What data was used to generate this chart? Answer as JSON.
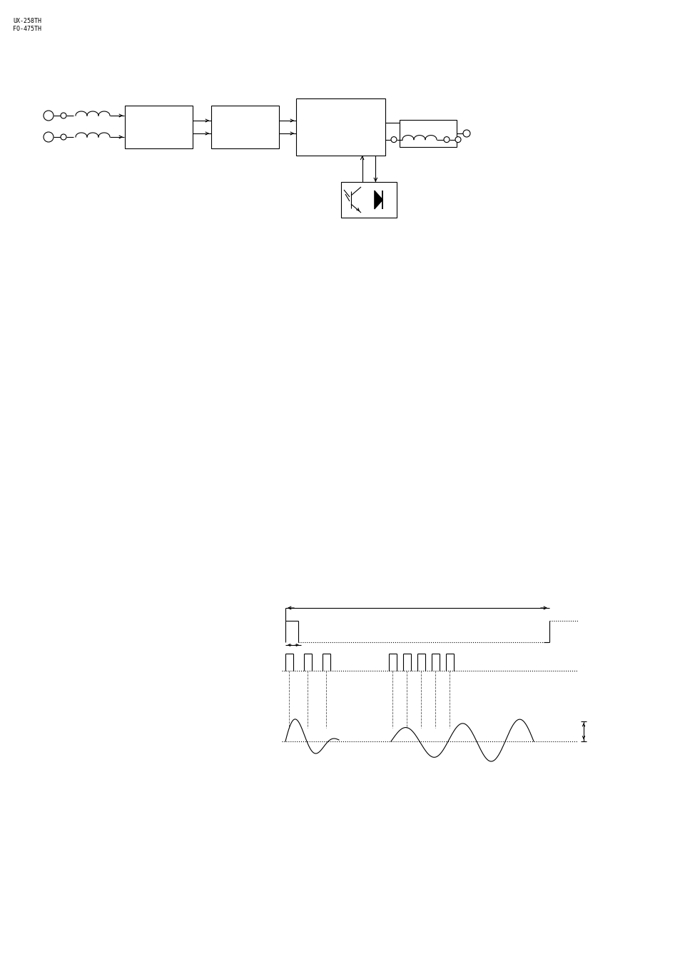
{
  "bg_color": "#ffffff",
  "header_text": [
    "UX-258TH",
    "FO-475TH"
  ],
  "fig_w": 9.54,
  "fig_h": 13.51,
  "dpi": 100
}
